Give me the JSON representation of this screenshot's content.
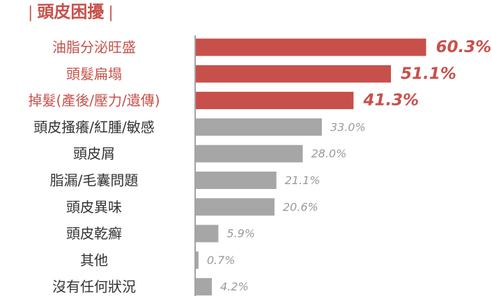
{
  "chart_data": {
    "type": "bar",
    "orientation": "horizontal",
    "title": "頭皮困擾",
    "categories": [
      "油脂分泌旺盛",
      "頭髮扁塌",
      "掉髮(產後/壓力/遺傳)",
      "頭皮搔癢/紅腫/敏感",
      "頭皮屑",
      "脂漏/毛囊問題",
      "頭皮異味",
      "頭皮乾癬",
      "其他",
      "沒有任何狀況"
    ],
    "values": [
      60.3,
      51.1,
      41.3,
      33.0,
      28.0,
      21.1,
      20.6,
      5.9,
      0.7,
      4.2
    ],
    "value_labels": [
      "60.3%",
      "51.1%",
      "41.3%",
      "33.0%",
      "28.0%",
      "21.1%",
      "20.6%",
      "5.9%",
      "0.7%",
      "4.2%"
    ],
    "unit": "%",
    "highlight_top_n": 3,
    "colors": {
      "highlight": "#c8504a",
      "normal": "#a6a6a6",
      "highlight_label": "#c8504a",
      "normal_label": "#9a9a9a",
      "category_highlight": "#c8504a",
      "category_normal": "#333333",
      "axis": "#444444"
    },
    "xlim": [
      0,
      70
    ],
    "grid": false,
    "legend": "none"
  }
}
